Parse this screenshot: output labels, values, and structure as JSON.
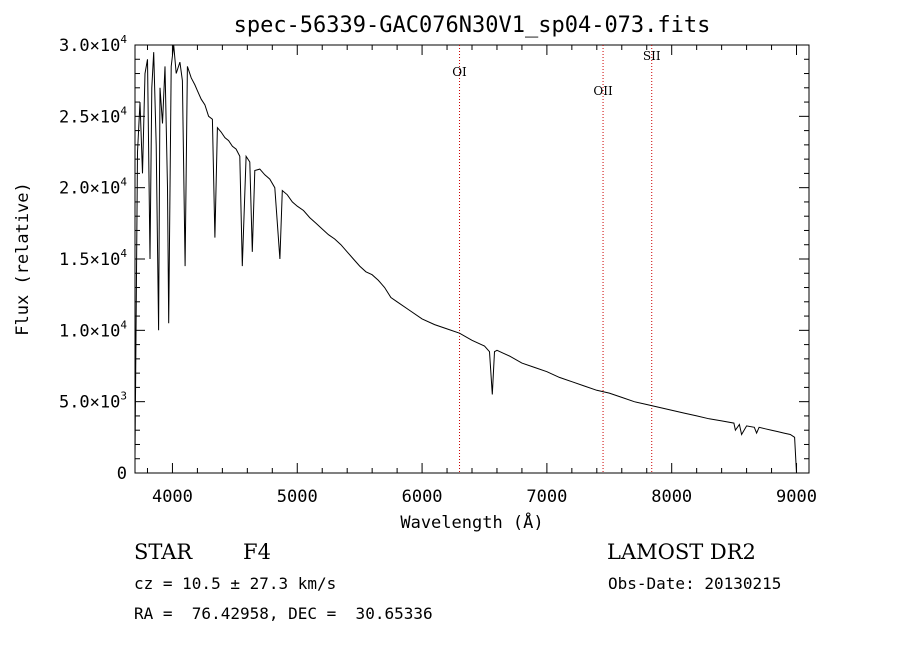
{
  "chart_data": {
    "type": "line",
    "title": "spec-56339-GAC076N30V1_sp04-073.fits",
    "xlabel": "Wavelength (Å)",
    "ylabel": "Flux (relative)",
    "xlim": [
      3700,
      9100
    ],
    "ylim": [
      0,
      30000
    ],
    "x_ticks": [
      4000,
      5000,
      6000,
      7000,
      8000,
      9000
    ],
    "y_ticks": [
      {
        "value": 0,
        "mantissa": "0",
        "exponent": ""
      },
      {
        "value": 5000,
        "mantissa": "5.0×10",
        "exponent": "3"
      },
      {
        "value": 10000,
        "mantissa": "1.0×10",
        "exponent": "4"
      },
      {
        "value": 15000,
        "mantissa": "1.5×10",
        "exponent": "4"
      },
      {
        "value": 20000,
        "mantissa": "2.0×10",
        "exponent": "4"
      },
      {
        "value": 25000,
        "mantissa": "2.5×10",
        "exponent": "4"
      },
      {
        "value": 30000,
        "mantissa": "3.0×10",
        "exponent": "4"
      }
    ],
    "spectral_lines": [
      {
        "label": "OI",
        "wavelength": 6300
      },
      {
        "label": "OII",
        "wavelength": 7450
      },
      {
        "label": "SII",
        "wavelength": 7840
      }
    ],
    "spectral_line_color": "#cc0000",
    "series": [
      {
        "x": [
          3700,
          3720,
          3740,
          3760,
          3780,
          3800,
          3820,
          3835,
          3850,
          3870,
          3889,
          3900,
          3920,
          3940,
          3960,
          3970,
          3990,
          4010,
          4030,
          4060,
          4080,
          4101,
          4120,
          4150,
          4180,
          4200,
          4230,
          4260,
          4290,
          4320,
          4340,
          4360,
          4390,
          4420,
          4450,
          4480,
          4510,
          4540,
          4560,
          4590,
          4620,
          4640,
          4660,
          4700,
          4740,
          4780,
          4820,
          4861,
          4880,
          4920,
          4960,
          5000,
          5050,
          5100,
          5150,
          5200,
          5250,
          5300,
          5350,
          5400,
          5450,
          5500,
          5550,
          5600,
          5650,
          5700,
          5750,
          5800,
          5900,
          6000,
          6100,
          6200,
          6300,
          6400,
          6500,
          6540,
          6563,
          6580,
          6600,
          6650,
          6700,
          6800,
          6900,
          7000,
          7100,
          7200,
          7300,
          7400,
          7500,
          7600,
          7700,
          7800,
          7900,
          8000,
          8100,
          8200,
          8300,
          8400,
          8498,
          8510,
          8542,
          8560,
          8600,
          8662,
          8680,
          8700,
          8750,
          8800,
          8850,
          8900,
          8950,
          8985,
          9000
        ],
        "y": [
          1200,
          22500,
          26000,
          21000,
          28000,
          29000,
          15000,
          27000,
          29500,
          23000,
          10000,
          27000,
          24500,
          28500,
          20000,
          10500,
          28500,
          30000,
          28000,
          28800,
          27500,
          14500,
          28500,
          27700,
          27200,
          26800,
          26200,
          25800,
          25000,
          24800,
          16500,
          24200,
          23900,
          23500,
          23300,
          22900,
          22700,
          22200,
          14500,
          22200,
          21800,
          15500,
          21200,
          21300,
          20900,
          20600,
          20000,
          15000,
          19800,
          19500,
          19000,
          18700,
          18400,
          17900,
          17500,
          17100,
          16700,
          16400,
          16000,
          15500,
          15000,
          14500,
          14100,
          13900,
          13500,
          13000,
          12300,
          12000,
          11400,
          10800,
          10400,
          10100,
          9800,
          9300,
          8900,
          8500,
          5500,
          8500,
          8600,
          8400,
          8200,
          7700,
          7400,
          7100,
          6700,
          6400,
          6100,
          5800,
          5600,
          5300,
          5000,
          4800,
          4600,
          4400,
          4200,
          4000,
          3800,
          3650,
          3500,
          3000,
          3400,
          2700,
          3300,
          3200,
          2800,
          3200,
          3100,
          3000,
          2900,
          2800,
          2700,
          2500,
          0
        ]
      }
    ]
  },
  "info": {
    "object_type": "STAR",
    "subclass": "F4",
    "survey": "LAMOST DR2",
    "cz": "cz = 10.5 ± 27.3 km/s",
    "obs_date": "Obs-Date: 20130215",
    "coords": "RA =  76.42958, DEC =  30.65336"
  }
}
